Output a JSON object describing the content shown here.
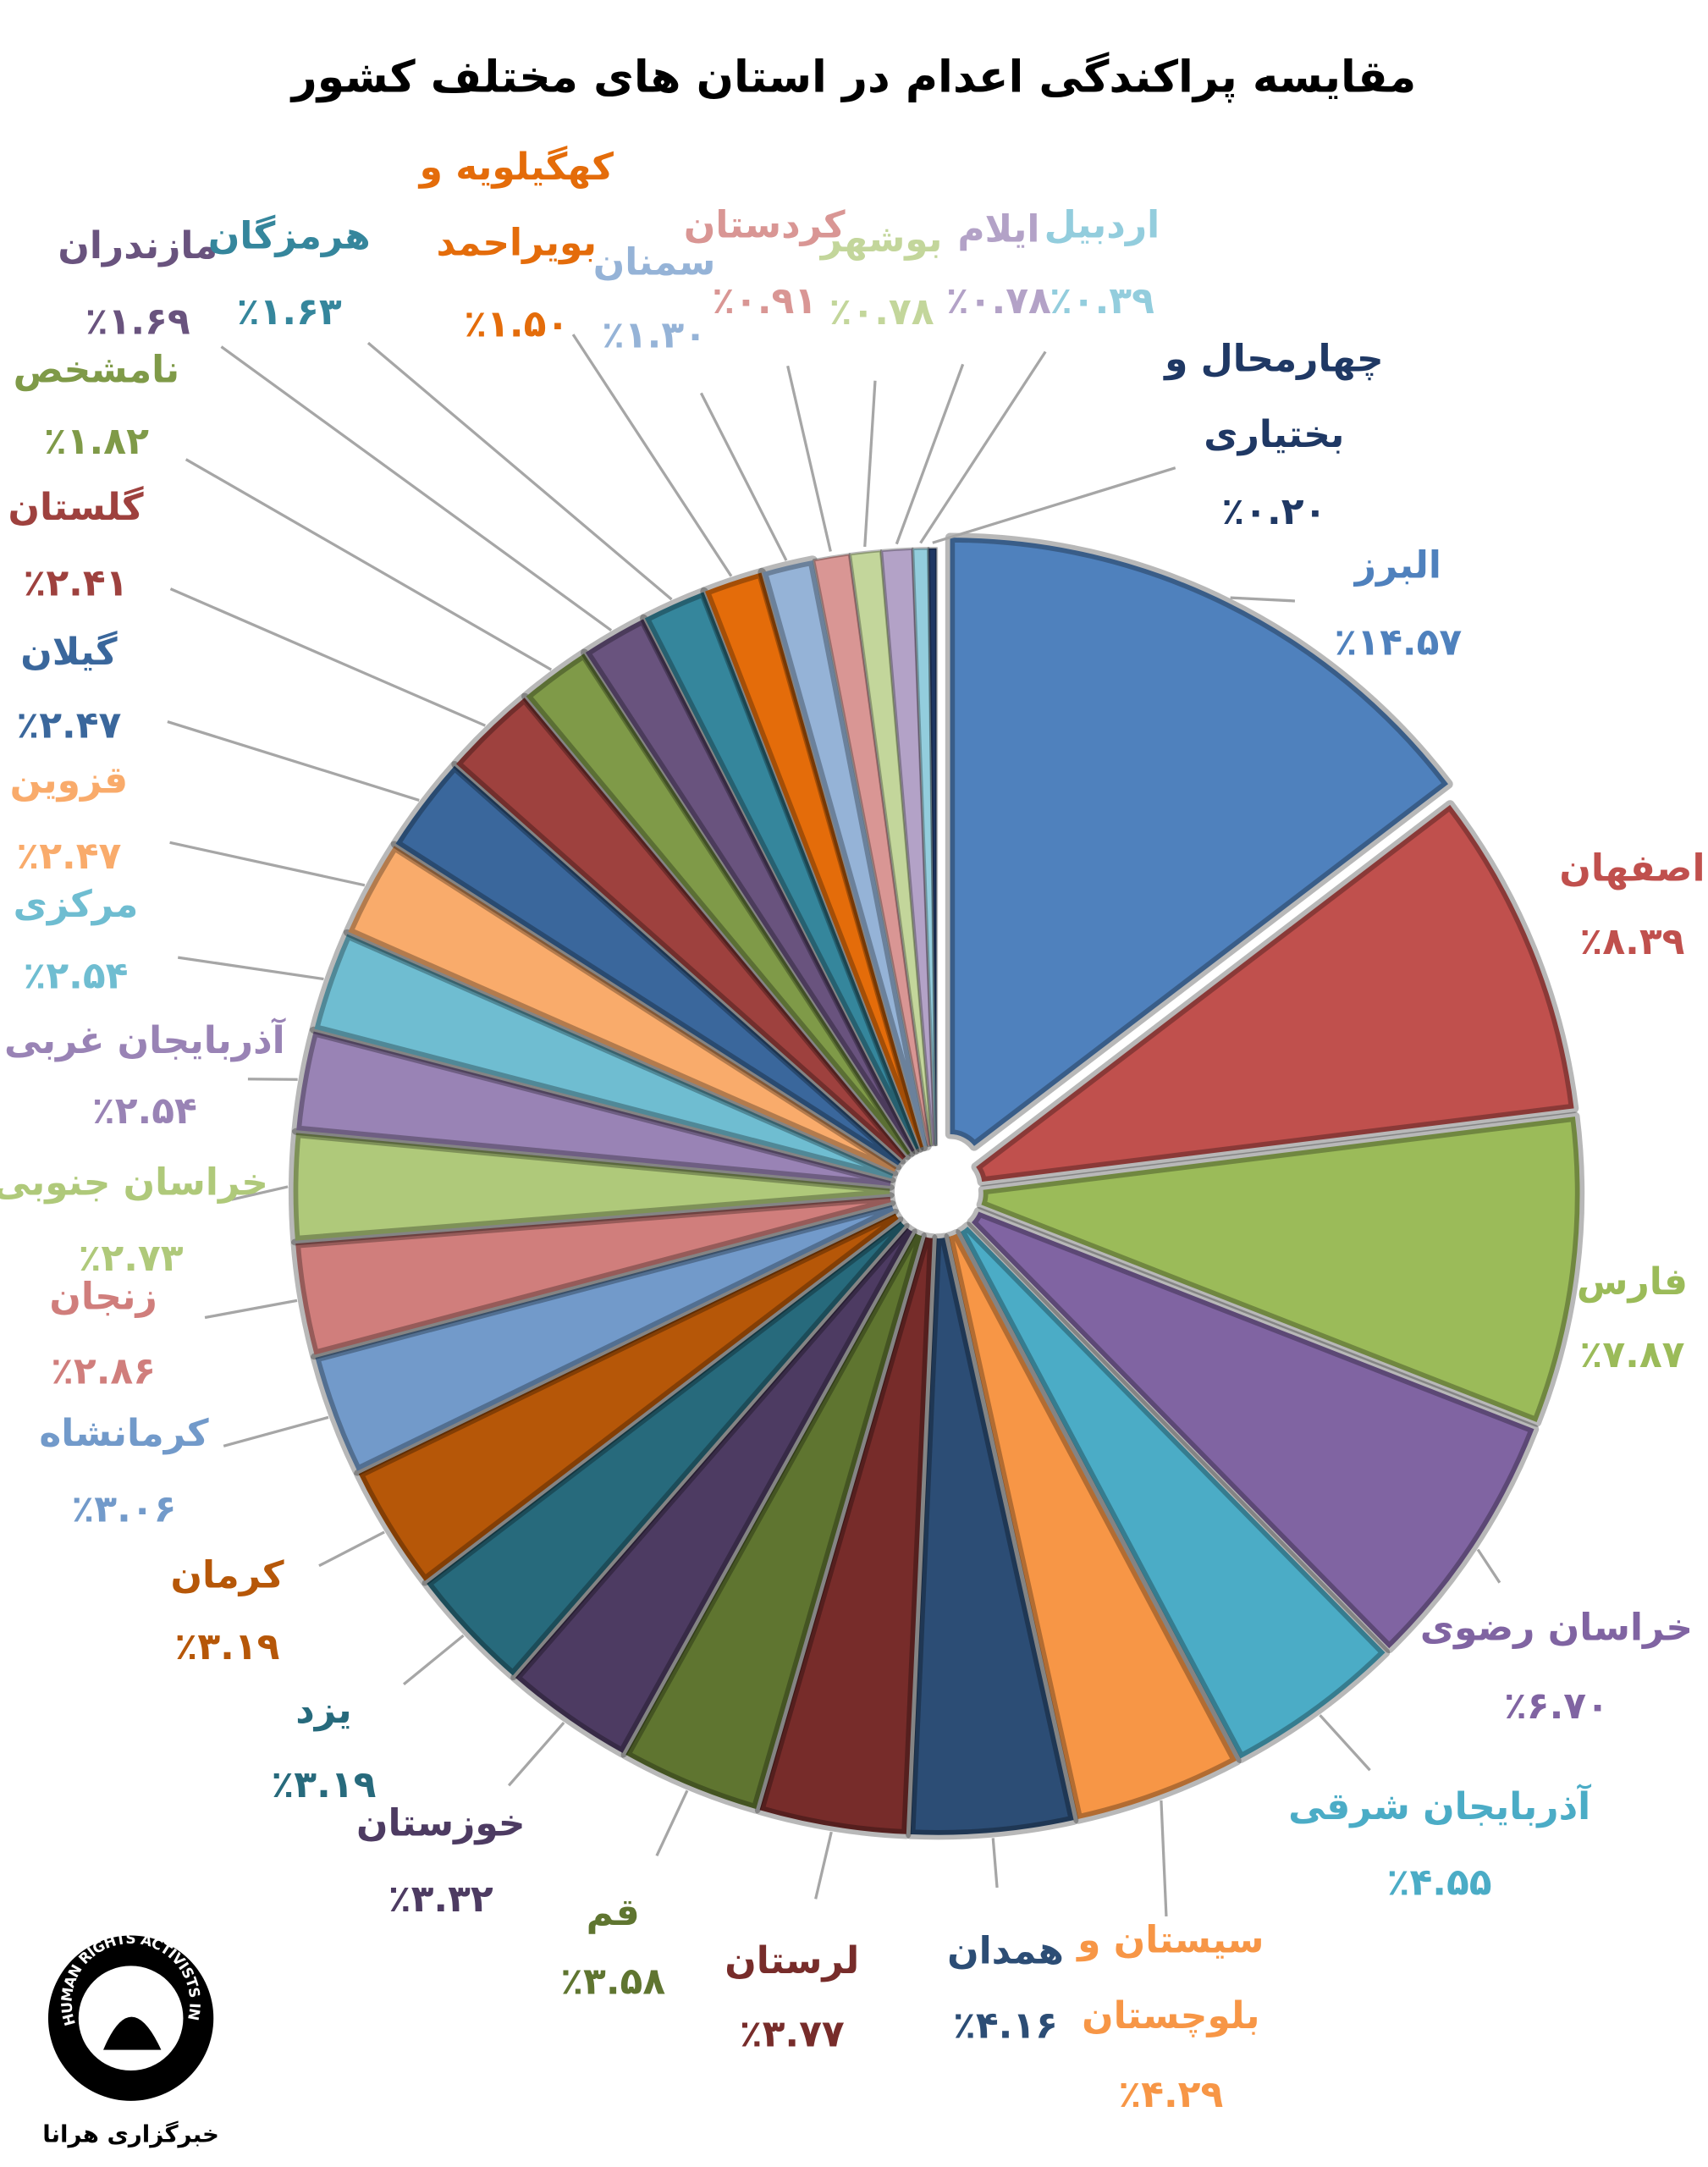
{
  "chart_data": {
    "type": "pie",
    "title": "مقایسه پراکندگی اعدام در استان های مختلف کشور",
    "categories": [
      "البرز",
      "اصفهان",
      "فارس",
      "خراسان رضوی",
      "آذربایجان شرقی",
      [
        "سیستان و",
        "بلوچستان"
      ],
      "همدان",
      "لرستان",
      "قم",
      "خوزستان",
      "یزد",
      "کرمان",
      "کرمانشاه",
      "زنجان",
      "خراسان جنوبی",
      "آذربایجان غربی",
      "مرکزی",
      "قزوین",
      "گیلان",
      "گلستان",
      "نامشخص",
      "مازندران",
      "هرمزگان",
      [
        "کهگیلویه و",
        "بویراحمد"
      ],
      "سمنان",
      "کردستان",
      "بوشهر",
      "ایلام",
      "اردبیل",
      [
        "چهارمحال و",
        "بختیاری"
      ]
    ],
    "values": [
      14.57,
      8.39,
      7.87,
      6.7,
      4.55,
      4.29,
      4.16,
      3.77,
      3.58,
      3.32,
      3.19,
      3.19,
      3.06,
      2.86,
      2.73,
      2.54,
      2.54,
      2.47,
      2.47,
      2.41,
      1.82,
      1.69,
      1.63,
      1.5,
      1.3,
      0.91,
      0.78,
      0.78,
      0.39,
      0.2
    ],
    "value_labels": [
      "٪۱۴.۵۷",
      "٪۸.۳۹",
      "٪۷.۸۷",
      "٪۶.۷۰",
      "٪۴.۵۵",
      "٪۴.۲۹",
      "٪۴.۱۶",
      "٪۳.۷۷",
      "٪۳.۵۸",
      "٪۳.۳۲",
      "٪۳.۱۹",
      "٪۳.۱۹",
      "٪۳.۰۶",
      "٪۲.۸۶",
      "٪۲.۷۳",
      "٪۲.۵۴",
      "٪۲.۵۴",
      "٪۲.۴۷",
      "٪۲.۴۷",
      "٪۲.۴۱",
      "٪۱.۸۲",
      "٪۱.۶۹",
      "٪۱.۶۳",
      "٪۱.۵۰",
      "٪۱.۳۰",
      "٪۰.۹۱",
      "٪۰.۷۸",
      "٪۰.۷۸",
      "٪۰.۳۹",
      "٪۰.۲۰"
    ],
    "colors": [
      "#4f81bd",
      "#c0504d",
      "#9bbb59",
      "#8064a2",
      "#4bacc6",
      "#f79646",
      "#2c4d75",
      "#772c2a",
      "#5f7530",
      "#4d3b62",
      "#276a7c",
      "#b65708",
      "#729aca",
      "#d07e7c",
      "#afc97a",
      "#9983b5",
      "#6fbdd1",
      "#f9ab6b",
      "#3a679c",
      "#9e413e",
      "#7f9a48",
      "#69537e",
      "#35869c",
      "#e46c0a",
      "#95b3d7",
      "#d99694",
      "#c3d69b",
      "#b3a2c7",
      "#93cddd",
      "#1f3864"
    ],
    "logo_text": "HUMAN RIGHTS ACTIVISTS IN IRAN",
    "logo_caption": "خبرگزاری هرانا"
  }
}
